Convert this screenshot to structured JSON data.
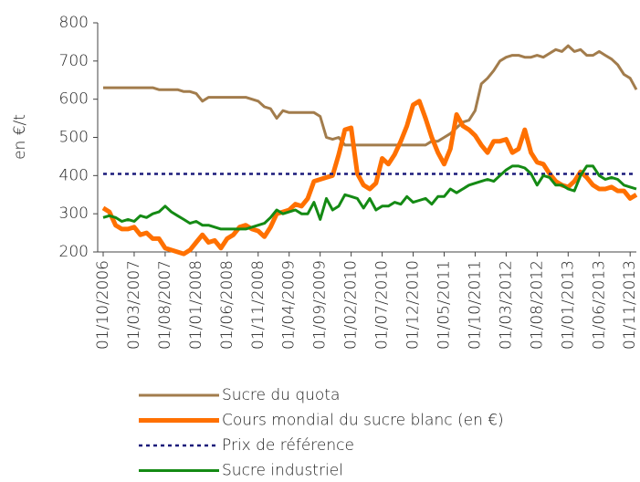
{
  "chart_data": {
    "type": "line",
    "ylabel": "en €/t",
    "ylim": [
      200,
      800
    ],
    "yticks": [
      200,
      300,
      400,
      500,
      600,
      700,
      800
    ],
    "categories": [
      "01/10/2006",
      null,
      null,
      null,
      null,
      "01/03/2007",
      null,
      null,
      null,
      null,
      "01/08/2007",
      null,
      null,
      null,
      null,
      "01/01/2008",
      null,
      null,
      null,
      null,
      "01/06/2008",
      null,
      null,
      null,
      null,
      "01/11/2008",
      null,
      null,
      null,
      null,
      "01/04/2009",
      null,
      null,
      null,
      null,
      "01/09/2009",
      null,
      null,
      null,
      null,
      "01/02/2010",
      null,
      null,
      null,
      null,
      "01/07/2010",
      null,
      null,
      null,
      null,
      "01/12/2010",
      null,
      null,
      null,
      null,
      "01/05/2011",
      null,
      null,
      null,
      null,
      "01/10/2011",
      null,
      null,
      null,
      null,
      "01/03/2012",
      null,
      null,
      null,
      null,
      "01/08/2012",
      null,
      null,
      null,
      null,
      "01/01/2013",
      null,
      null,
      null,
      null,
      "01/06/2013",
      null,
      null,
      null,
      null,
      "01/11/2013",
      null
    ],
    "series": [
      {
        "name": "Sucre du quota",
        "color": "#a27c4c",
        "width": 3,
        "dash": false,
        "values": [
          630,
          630,
          630,
          630,
          630,
          630,
          630,
          630,
          630,
          625,
          625,
          625,
          625,
          620,
          620,
          615,
          595,
          605,
          605,
          605,
          605,
          605,
          605,
          605,
          600,
          595,
          580,
          575,
          550,
          570,
          565,
          565,
          565,
          565,
          565,
          555,
          500,
          495,
          500,
          480,
          480,
          480,
          480,
          480,
          480,
          480,
          480,
          480,
          480,
          480,
          480,
          480,
          480,
          490,
          490,
          500,
          510,
          525,
          540,
          545,
          570,
          640,
          655,
          675,
          700,
          710,
          715,
          715,
          710,
          710,
          715,
          710,
          720,
          730,
          725,
          740,
          725,
          730,
          715,
          715,
          725,
          715,
          705,
          690,
          665,
          655,
          625
        ]
      },
      {
        "name": "Cours mondial du sucre blanc (en €)",
        "color": "#ff7000",
        "width": 5,
        "dash": false,
        "values": [
          315,
          305,
          270,
          260,
          260,
          265,
          245,
          250,
          235,
          235,
          210,
          205,
          200,
          195,
          205,
          225,
          245,
          225,
          230,
          210,
          235,
          245,
          265,
          270,
          260,
          255,
          240,
          265,
          300,
          305,
          310,
          325,
          320,
          340,
          385,
          390,
          395,
          400,
          455,
          520,
          525,
          405,
          375,
          365,
          380,
          445,
          430,
          455,
          490,
          530,
          585,
          595,
          550,
          500,
          460,
          430,
          470,
          560,
          530,
          520,
          505,
          480,
          460,
          490,
          490,
          495,
          460,
          470,
          520,
          460,
          435,
          430,
          405,
          385,
          375,
          370,
          385,
          410,
          395,
          375,
          365,
          365,
          370,
          360,
          360,
          340,
          350
        ]
      },
      {
        "name": "Prix de référence",
        "color": "#1a1a7a",
        "width": 2.5,
        "dash": true,
        "values": [
          404.4,
          404.4,
          404.4,
          404.4,
          404.4,
          404.4,
          404.4,
          404.4,
          404.4,
          404.4,
          404.4,
          404.4,
          404.4,
          404.4,
          404.4,
          404.4,
          404.4,
          404.4,
          404.4,
          404.4,
          404.4,
          404.4,
          404.4,
          404.4,
          404.4,
          404.4,
          404.4,
          404.4,
          404.4,
          404.4,
          404.4,
          404.4,
          404.4,
          404.4,
          404.4,
          404.4,
          404.4,
          404.4,
          404.4,
          404.4,
          404.4,
          404.4,
          404.4,
          404.4,
          404.4,
          404.4,
          404.4,
          404.4,
          404.4,
          404.4,
          404.4,
          404.4,
          404.4,
          404.4,
          404.4,
          404.4,
          404.4,
          404.4,
          404.4,
          404.4,
          404.4,
          404.4,
          404.4,
          404.4,
          404.4,
          404.4,
          404.4,
          404.4,
          404.4,
          404.4,
          404.4,
          404.4,
          404.4,
          404.4,
          404.4,
          404.4,
          404.4,
          404.4,
          404.4,
          404.4,
          404.4,
          404.4,
          404.4,
          404.4,
          404.4,
          404.4,
          404.4
        ]
      },
      {
        "name": "Sucre industriel",
        "color": "#148a14",
        "width": 3,
        "dash": false,
        "values": [
          290,
          295,
          290,
          280,
          285,
          280,
          295,
          290,
          300,
          305,
          320,
          305,
          295,
          285,
          275,
          280,
          270,
          270,
          265,
          260,
          260,
          260,
          260,
          260,
          265,
          270,
          275,
          290,
          310,
          300,
          305,
          310,
          300,
          300,
          330,
          285,
          340,
          310,
          320,
          350,
          345,
          340,
          315,
          340,
          310,
          320,
          320,
          330,
          325,
          345,
          330,
          335,
          340,
          325,
          345,
          345,
          365,
          355,
          365,
          375,
          380,
          385,
          390,
          385,
          400,
          415,
          425,
          425,
          420,
          405,
          375,
          400,
          395,
          375,
          375,
          365,
          360,
          400,
          425,
          425,
          400,
          390,
          395,
          390,
          375,
          370,
          365
        ]
      }
    ]
  }
}
